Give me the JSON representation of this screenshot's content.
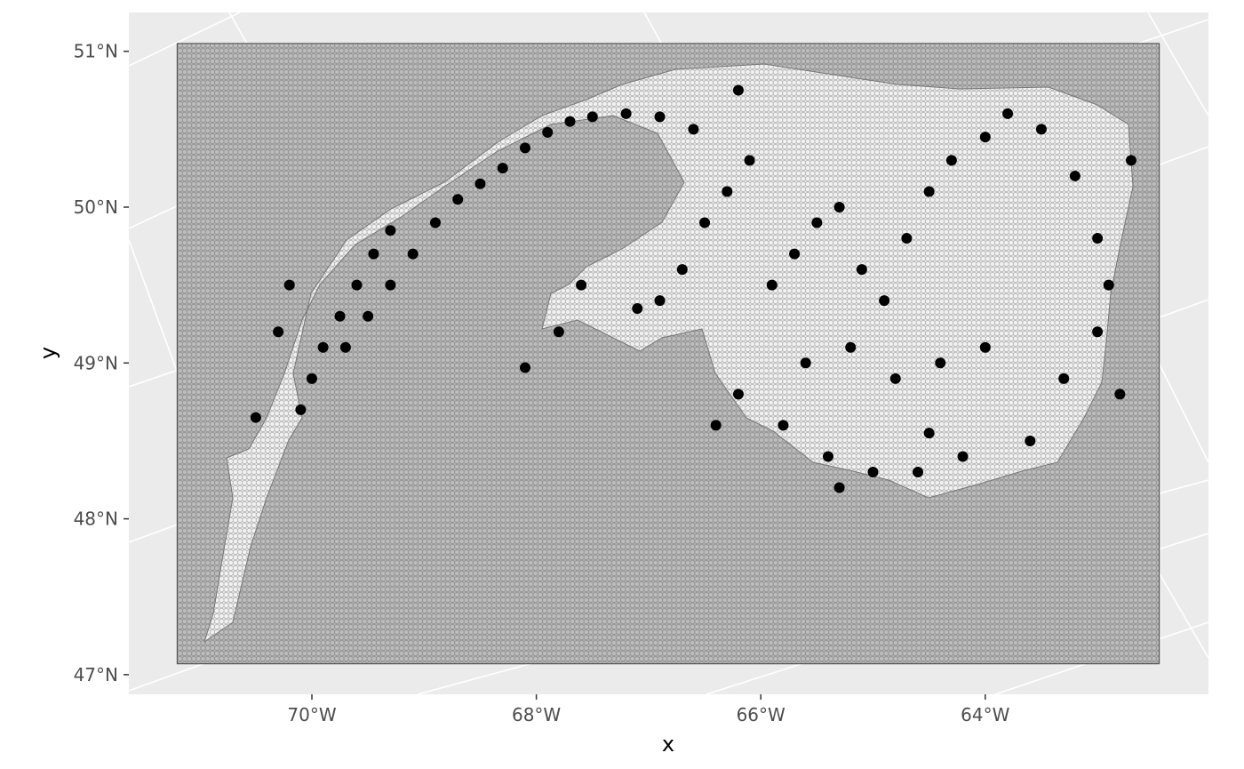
{
  "chart_data": {
    "type": "scatter",
    "title": "",
    "xlabel": "x",
    "ylabel": "y",
    "x_ticks": [
      "70°W",
      "68°W",
      "66°W",
      "64°W"
    ],
    "x_tick_values": [
      -70,
      -68,
      -66,
      -64
    ],
    "y_ticks": [
      "47°N",
      "48°N",
      "49°N",
      "50°N",
      "51°N"
    ],
    "y_tick_values": [
      47,
      48,
      49,
      50,
      51
    ],
    "xlim": [
      -71.9,
      -62.3
    ],
    "ylim": [
      46.87,
      51.23
    ],
    "grid_extent": {
      "lon": [
        -71.2,
        -62.45
      ],
      "lat": [
        47.07,
        51.05
      ]
    },
    "grid": true,
    "layers": [
      {
        "name": "hexagonal grid",
        "kind": "polygon"
      },
      {
        "name": "coastline",
        "kind": "line"
      },
      {
        "name": "observations",
        "kind": "point"
      }
    ],
    "series": [
      {
        "points": [
          [
            -70.1,
            48.7
          ],
          [
            -70.0,
            48.9
          ],
          [
            -69.9,
            49.1
          ],
          [
            -69.75,
            49.3
          ],
          [
            -69.6,
            49.5
          ],
          [
            -69.45,
            49.7
          ],
          [
            -69.3,
            49.85
          ],
          [
            -69.7,
            49.1
          ],
          [
            -69.5,
            49.3
          ],
          [
            -69.3,
            49.5
          ],
          [
            -69.1,
            49.7
          ],
          [
            -68.9,
            49.9
          ],
          [
            -68.7,
            50.05
          ],
          [
            -70.3,
            49.2
          ],
          [
            -70.2,
            49.5
          ],
          [
            -68.5,
            50.15
          ],
          [
            -68.3,
            50.25
          ],
          [
            -68.1,
            50.38
          ],
          [
            -67.9,
            50.48
          ],
          [
            -67.7,
            50.55
          ],
          [
            -67.5,
            50.58
          ],
          [
            -67.2,
            50.6
          ],
          [
            -66.9,
            50.58
          ],
          [
            -66.6,
            50.5
          ],
          [
            -67.1,
            49.35
          ],
          [
            -66.9,
            49.4
          ],
          [
            -66.7,
            49.6
          ],
          [
            -66.5,
            49.9
          ],
          [
            -66.3,
            50.1
          ],
          [
            -66.1,
            50.3
          ],
          [
            -65.9,
            49.5
          ],
          [
            -65.7,
            49.7
          ],
          [
            -65.5,
            49.9
          ],
          [
            -65.3,
            50.0
          ],
          [
            -65.1,
            49.6
          ],
          [
            -64.9,
            49.4
          ],
          [
            -64.7,
            49.8
          ],
          [
            -64.5,
            50.1
          ],
          [
            -64.3,
            50.3
          ],
          [
            -64.0,
            50.45
          ],
          [
            -63.8,
            50.6
          ],
          [
            -63.5,
            50.5
          ],
          [
            -63.2,
            50.2
          ],
          [
            -63.0,
            49.8
          ],
          [
            -62.9,
            49.5
          ],
          [
            -63.0,
            49.2
          ],
          [
            -63.3,
            48.9
          ],
          [
            -63.6,
            48.5
          ],
          [
            -64.2,
            48.4
          ],
          [
            -64.6,
            48.3
          ],
          [
            -65.0,
            48.3
          ],
          [
            -65.4,
            48.4
          ],
          [
            -65.8,
            48.6
          ],
          [
            -66.2,
            48.8
          ],
          [
            -66.4,
            48.6
          ],
          [
            -65.6,
            49.0
          ],
          [
            -65.2,
            49.1
          ],
          [
            -64.8,
            48.9
          ],
          [
            -64.4,
            49.0
          ],
          [
            -64.0,
            49.1
          ],
          [
            -67.8,
            49.2
          ],
          [
            -67.6,
            49.5
          ],
          [
            -68.1,
            48.97
          ],
          [
            -62.7,
            50.3
          ],
          [
            -62.8,
            48.8
          ],
          [
            -66.2,
            50.75
          ],
          [
            -64.5,
            48.55
          ],
          [
            -65.3,
            48.2
          ],
          [
            -70.5,
            48.65
          ]
        ]
      }
    ]
  }
}
